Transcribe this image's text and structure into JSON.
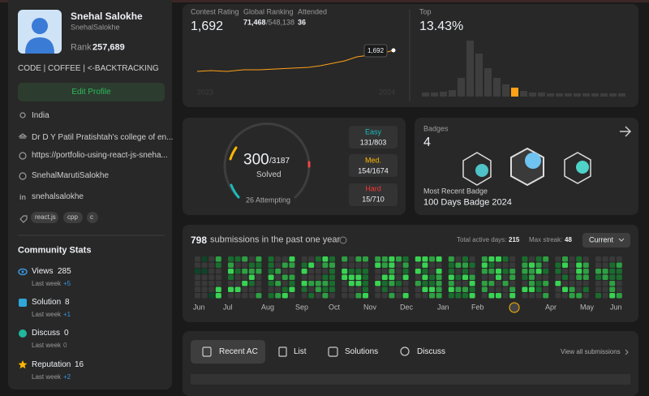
{
  "profile": {
    "name": "Snehal Salokhe",
    "username": "SnehalSalokhe",
    "rank_label": "Rank",
    "rank": "257,689",
    "bio": "CODE | COFFEE | <-BACKTRACKING",
    "edit_button": "Edit Profile",
    "location": "India",
    "school": "Dr D Y Patil Pratishtah's college of en...",
    "website": "https://portfolio-using-react-js-sneha...",
    "github": "SnehalMarutiSalokhe",
    "linkedin": "snehalsalokhe",
    "skills": [
      "react.js",
      "cpp",
      "c"
    ]
  },
  "community_stats": {
    "title": "Community Stats",
    "items": [
      {
        "label": "Views",
        "value": "285",
        "last_week_label": "Last week",
        "last_week": "+5"
      },
      {
        "label": "Solution",
        "value": "8",
        "last_week_label": "Last week",
        "last_week": "+1"
      },
      {
        "label": "Discuss",
        "value": "0",
        "last_week_label": "Last week",
        "last_week": "0"
      },
      {
        "label": "Reputation",
        "value": "16",
        "last_week_label": "Last week",
        "last_week": "+2"
      }
    ]
  },
  "contest": {
    "rating_label": "Contest Rating",
    "rating": "1,692",
    "global_ranking_label": "Global Ranking",
    "global_rank": "71,468",
    "global_total": "/548,138",
    "attended_label": "Attended",
    "attended": "36",
    "tooltip": "1,692",
    "years": [
      "2023",
      "2024"
    ]
  },
  "top": {
    "label": "Top",
    "value": "13.43%"
  },
  "problems": {
    "solved": "300",
    "total": "/3187",
    "solved_label": "Solved",
    "attempting": "26 Attempting",
    "difficulties": [
      {
        "name": "Easy",
        "count": "131/803"
      },
      {
        "name": "Med.",
        "count": "154/1674"
      },
      {
        "name": "Hard",
        "count": "15/710"
      }
    ]
  },
  "badges": {
    "label": "Badges",
    "count": "4",
    "recent_label": "Most Recent Badge",
    "recent": "100 Days Badge 2024"
  },
  "submissions": {
    "count": "798",
    "text": "submissions in the past one year",
    "active_days_label": "Total active days:",
    "active_days": "215",
    "max_streak_label": "Max streak:",
    "max_streak": "48",
    "dropdown": "Current",
    "months": [
      "Jun",
      "Jul",
      "Aug",
      "Sep",
      "Oct",
      "Nov",
      "Dec",
      "Jan",
      "Feb",
      "Apr",
      "May",
      "Jun"
    ]
  },
  "tabs": {
    "items": [
      "Recent AC",
      "List",
      "Solutions",
      "Discuss"
    ],
    "view_all": "View all submissions"
  }
}
